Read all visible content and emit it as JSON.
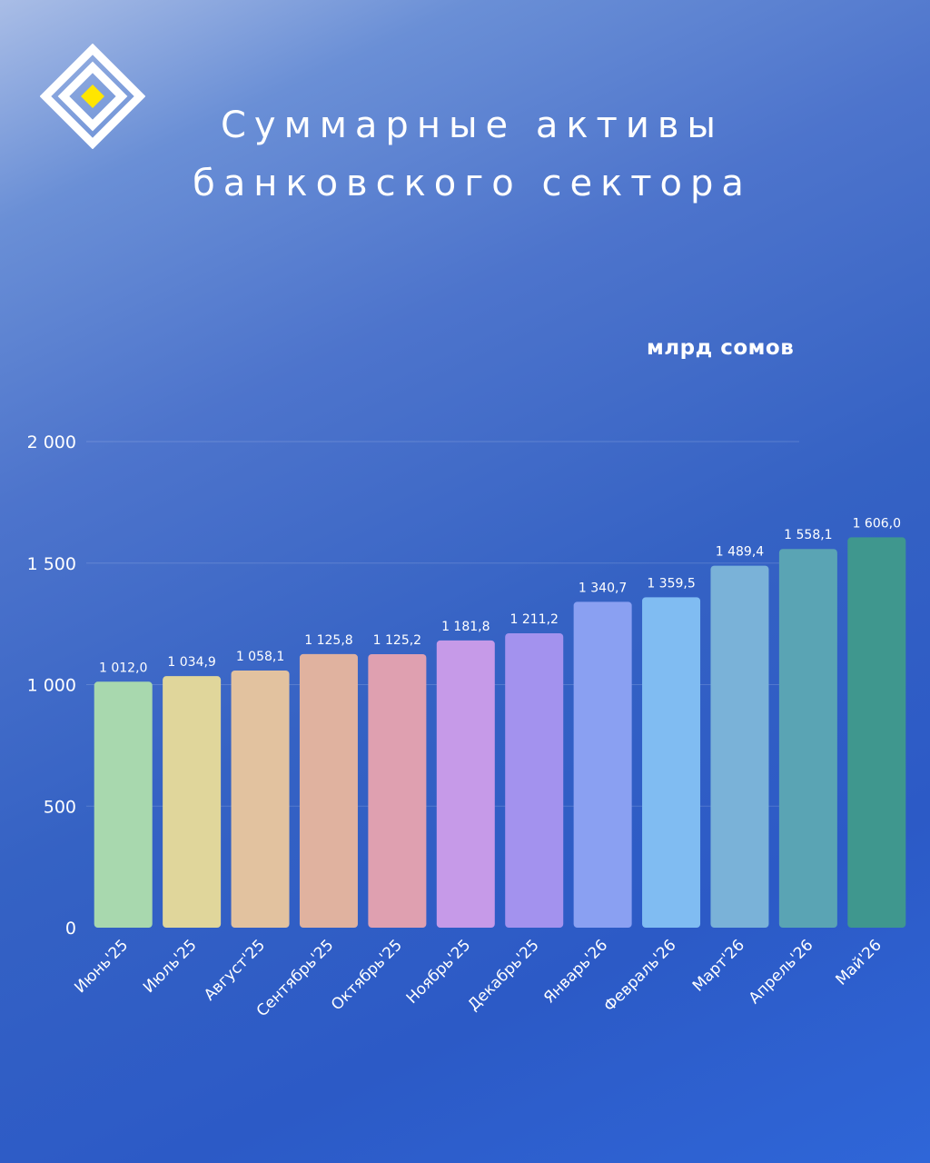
{
  "title": {
    "line1": "Суммарные активы",
    "line2": "банковского сектора"
  },
  "logo": {
    "icon": "diamond-logo-icon",
    "colors": {
      "outline": "#ffffff",
      "center": "#ffe600"
    }
  },
  "chart_data": {
    "type": "bar",
    "title": "Суммарные активы банковского сектора",
    "unit": "млрд сомов",
    "categories": [
      "Июнь'25",
      "Июль'25",
      "Август'25",
      "Сентябрь'25",
      "Октябрь'25",
      "Ноябрь'25",
      "Декабрь'25",
      "Январь'26",
      "Февраль'26",
      "Март'26",
      "Апрель'26",
      "Май'26"
    ],
    "values": [
      1012.0,
      1034.9,
      1058.1,
      1125.8,
      1125.2,
      1181.8,
      1211.2,
      1340.7,
      1359.5,
      1489.4,
      1558.1,
      1606.0
    ],
    "value_labels": [
      "1 012,0",
      "1 034,9",
      "1 058,1",
      "1 125,8",
      "1 125,2",
      "1 181,8",
      "1 211,2",
      "1 340,7",
      "1 359,5",
      "1 489,4",
      "1 558,1",
      "1 606,0"
    ],
    "ylim": [
      0,
      2000
    ],
    "yticks": [
      0,
      500,
      1000,
      1500,
      2000
    ],
    "ytick_labels": [
      "0",
      "500",
      "1 000",
      "1 500",
      "2 000"
    ],
    "bar_colors": [
      "#a8d8ae",
      "#e0d69b",
      "#e2c29f",
      "#e0b29f",
      "#dfa0b0",
      "#c69ae8",
      "#a392ee",
      "#8aa0f2",
      "#80bcf2",
      "#7ab2d8",
      "#5aa4b4",
      "#3f978e"
    ],
    "grid": true,
    "legend": "none"
  }
}
